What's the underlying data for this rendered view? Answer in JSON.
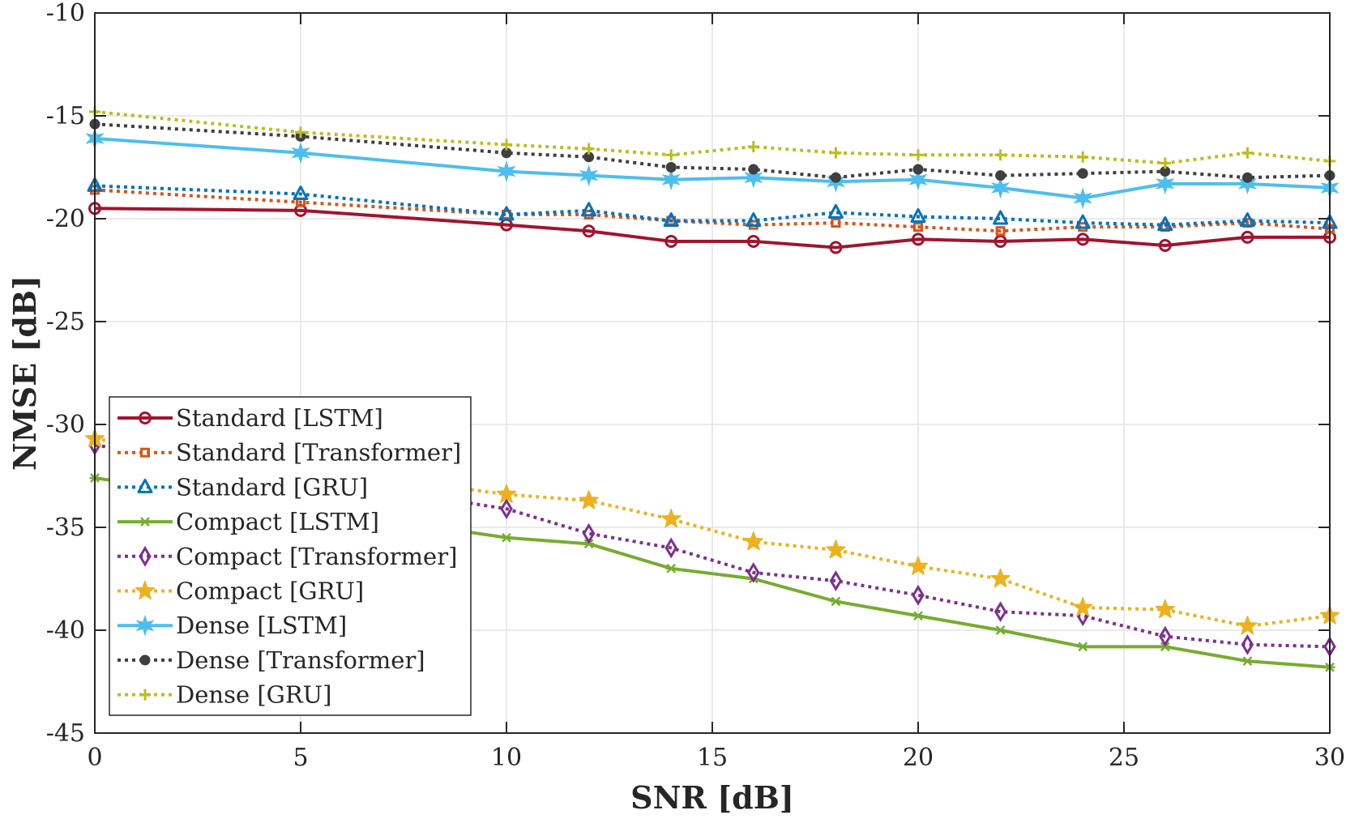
{
  "chart_data": {
    "type": "line",
    "title": "",
    "xlabel": "SNR [dB]",
    "ylabel": "NMSE [dB]",
    "xlim": [
      0,
      30
    ],
    "ylim": [
      -45,
      -10
    ],
    "xticks": [
      0,
      5,
      10,
      15,
      20,
      25,
      30
    ],
    "yticks": [
      -10,
      -15,
      -20,
      -25,
      -30,
      -35,
      -40,
      -45
    ],
    "xtick_labels": [
      "0",
      "5",
      "10",
      "15",
      "20",
      "25",
      "30"
    ],
    "ytick_labels": [
      "-10",
      "-15",
      "-20",
      "-25",
      "-30",
      "-35",
      "-40",
      "-45"
    ],
    "grid": true,
    "legend_position": "bottom-left",
    "series": [
      {
        "name": "Standard [LSTM]",
        "color": "#A2142F",
        "dash": "solid",
        "marker": "circle",
        "x": [
          0,
          5,
          10,
          12,
          14,
          16,
          18,
          20,
          22,
          24,
          26,
          28,
          30
        ],
        "y": [
          -19.5,
          -19.6,
          -20.3,
          -20.6,
          -21.1,
          -21.1,
          -21.4,
          -21.0,
          -21.1,
          -21.0,
          -21.3,
          -20.9,
          -20.9
        ]
      },
      {
        "name": "Standard [Transformer]",
        "color": "#D95319",
        "dash": "dotted",
        "marker": "square",
        "x": [
          0,
          5,
          10,
          12,
          14,
          16,
          18,
          20,
          22,
          24,
          26,
          28,
          30
        ],
        "y": [
          -18.6,
          -19.2,
          -19.8,
          -19.8,
          -20.1,
          -20.3,
          -20.2,
          -20.4,
          -20.6,
          -20.4,
          -20.4,
          -20.2,
          -20.5
        ]
      },
      {
        "name": "Standard [GRU]",
        "color": "#0072BD",
        "dash": "dotted",
        "marker": "triangle",
        "x": [
          0,
          5,
          10,
          12,
          14,
          16,
          18,
          20,
          22,
          24,
          26,
          28,
          30
        ],
        "y": [
          -18.4,
          -18.8,
          -19.8,
          -19.6,
          -20.1,
          -20.1,
          -19.7,
          -19.9,
          -20.0,
          -20.2,
          -20.3,
          -20.1,
          -20.2
        ]
      },
      {
        "name": "Compact [LSTM]",
        "color": "#77AC30",
        "dash": "solid",
        "marker": "asterisk",
        "x": [
          0,
          10,
          12,
          14,
          16,
          18,
          20,
          22,
          24,
          26,
          28,
          30
        ],
        "y": [
          -32.6,
          -35.5,
          -35.8,
          -37.0,
          -37.5,
          -38.6,
          -39.3,
          -40.0,
          -40.8,
          -40.8,
          -41.5,
          -41.8
        ]
      },
      {
        "name": "Compact [Transformer]",
        "color": "#7E2F8E",
        "dash": "dotted",
        "marker": "diamond",
        "x": [
          0,
          10,
          12,
          14,
          16,
          18,
          20,
          22,
          24,
          26,
          28,
          30
        ],
        "y": [
          -31.0,
          -34.1,
          -35.3,
          -36.0,
          -37.2,
          -37.6,
          -38.3,
          -39.1,
          -39.3,
          -40.3,
          -40.7,
          -40.8
        ]
      },
      {
        "name": "Compact [GRU]",
        "color": "#EDB120",
        "dash": "dotted",
        "marker": "star",
        "x": [
          0,
          10,
          12,
          14,
          16,
          18,
          20,
          22,
          24,
          26,
          28,
          30
        ],
        "y": [
          -30.7,
          -33.4,
          -33.7,
          -34.6,
          -35.7,
          -36.1,
          -36.9,
          -37.5,
          -38.9,
          -39.0,
          -39.8,
          -39.3
        ]
      },
      {
        "name": "Dense [LSTM]",
        "color": "#4DBEEE",
        "dash": "solid",
        "marker": "star6",
        "x": [
          0,
          5,
          10,
          12,
          14,
          16,
          18,
          20,
          22,
          24,
          26,
          28,
          30
        ],
        "y": [
          -16.1,
          -16.8,
          -17.7,
          -17.9,
          -18.1,
          -18.0,
          -18.2,
          -18.1,
          -18.5,
          -19.0,
          -18.3,
          -18.3,
          -18.5
        ]
      },
      {
        "name": "Dense [Transformer]",
        "color": "#3F3F3F",
        "dash": "dotted",
        "marker": "dot",
        "x": [
          0,
          5,
          10,
          12,
          14,
          16,
          18,
          20,
          22,
          24,
          26,
          28,
          30
        ],
        "y": [
          -15.4,
          -16.0,
          -16.8,
          -17.0,
          -17.5,
          -17.6,
          -18.0,
          -17.6,
          -17.9,
          -17.8,
          -17.7,
          -18.0,
          -17.9
        ]
      },
      {
        "name": "Dense [GRU]",
        "color": "#BDBD1E",
        "dash": "dotted",
        "marker": "plus",
        "x": [
          0,
          5,
          10,
          12,
          14,
          16,
          18,
          20,
          22,
          24,
          26,
          28,
          30
        ],
        "y": [
          -14.8,
          -15.8,
          -16.4,
          -16.6,
          -16.9,
          -16.5,
          -16.8,
          -16.9,
          -16.9,
          -17.0,
          -17.3,
          -16.8,
          -17.2
        ]
      }
    ]
  }
}
